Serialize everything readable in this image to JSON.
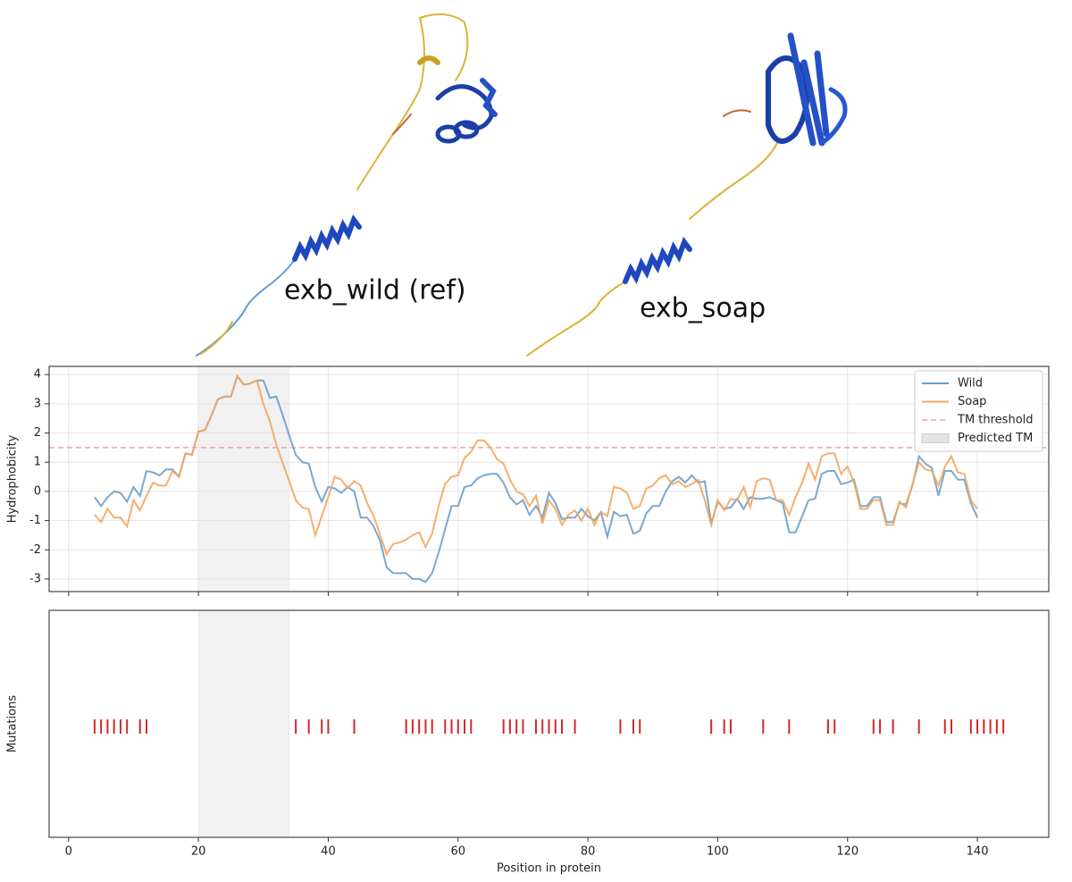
{
  "images": [
    {
      "label": "exb_wild (ref)"
    },
    {
      "label": "exb_soap"
    }
  ],
  "chart_data": [
    {
      "type": "line",
      "ylabel": "Hydrophobicity",
      "x": [
        4,
        5,
        6,
        7,
        8,
        9,
        10,
        11,
        12,
        13,
        14,
        15,
        16,
        17,
        18,
        19,
        20,
        21,
        22,
        23,
        24,
        25,
        26,
        27,
        28,
        29,
        30,
        31,
        32,
        33,
        34,
        35,
        36,
        37,
        38,
        39,
        40,
        41,
        42,
        43,
        44,
        45,
        46,
        47,
        48,
        49,
        50,
        51,
        52,
        53,
        54,
        55,
        56,
        57,
        58,
        59,
        60,
        61,
        62,
        63,
        64,
        65,
        66,
        67,
        68,
        69,
        70,
        71,
        72,
        73,
        74,
        75,
        76,
        77,
        78,
        79,
        80,
        81,
        82,
        83,
        84,
        85,
        86,
        87,
        88,
        89,
        90,
        91,
        92,
        93,
        94,
        95,
        96,
        97,
        98,
        99,
        100,
        101,
        102,
        103,
        104,
        105,
        106,
        107,
        108,
        109,
        110,
        111,
        112,
        113,
        114,
        115,
        116,
        117,
        118,
        119,
        120,
        121,
        122,
        123,
        124,
        125,
        126,
        127,
        128,
        129,
        130,
        131,
        132,
        133,
        134,
        135,
        136,
        137,
        138,
        139,
        140
      ],
      "series": [
        {
          "name": "Wild",
          "color": "#6a9fcb",
          "values": [
            -0.2,
            -0.5,
            -0.2,
            0.0,
            -0.05,
            -0.35,
            0.15,
            -0.15,
            0.7,
            0.65,
            0.55,
            0.75,
            0.75,
            0.5,
            1.3,
            1.25,
            2.05,
            2.1,
            2.6,
            3.15,
            3.25,
            3.25,
            3.95,
            3.65,
            3.7,
            3.8,
            3.8,
            3.2,
            3.25,
            2.6,
            1.9,
            1.25,
            1.0,
            0.95,
            0.15,
            -0.35,
            0.15,
            0.1,
            -0.05,
            0.15,
            0.0,
            -0.9,
            -0.9,
            -1.2,
            -1.7,
            -2.6,
            -2.8,
            -2.8,
            -2.8,
            -3.0,
            -3.0,
            -3.1,
            -2.8,
            -2.1,
            -1.3,
            -0.5,
            -0.5,
            0.15,
            0.2,
            0.45,
            0.55,
            0.6,
            0.6,
            0.3,
            -0.2,
            -0.45,
            -0.3,
            -0.8,
            -0.5,
            -0.9,
            -0.05,
            -0.4,
            -0.95,
            -0.9,
            -0.9,
            -0.6,
            -0.85,
            -1.0,
            -0.7,
            -1.55,
            -0.7,
            -0.85,
            -0.8,
            -1.45,
            -1.35,
            -0.75,
            -0.5,
            -0.5,
            0.0,
            0.35,
            0.5,
            0.3,
            0.55,
            0.3,
            0.35,
            -1.1,
            -0.35,
            -0.6,
            -0.55,
            -0.25,
            -0.6,
            -0.2,
            -0.25,
            -0.25,
            -0.2,
            -0.3,
            -0.4,
            -1.4,
            -1.4,
            -0.85,
            -0.3,
            -0.25,
            0.6,
            0.7,
            0.7,
            0.25,
            0.3,
            0.4,
            -0.5,
            -0.5,
            -0.2,
            -0.2,
            -1.05,
            -1.05,
            -0.4,
            -0.45,
            0.2,
            1.2,
            0.95,
            0.8,
            -0.15,
            0.7,
            0.7,
            0.4,
            0.4,
            -0.4,
            -0.9
          ]
        },
        {
          "name": "Soap",
          "color": "#f5a55c",
          "values": [
            -0.8,
            -1.05,
            -0.6,
            -0.9,
            -0.9,
            -1.2,
            -0.3,
            -0.65,
            -0.15,
            0.3,
            0.2,
            0.2,
            0.7,
            0.5,
            1.3,
            1.25,
            2.05,
            2.1,
            2.6,
            3.15,
            3.25,
            3.25,
            3.95,
            3.65,
            3.7,
            3.8,
            3.0,
            2.4,
            1.6,
            0.95,
            0.35,
            -0.3,
            -0.55,
            -0.6,
            -1.5,
            -0.85,
            -0.2,
            0.5,
            0.4,
            0.1,
            0.35,
            0.2,
            -0.4,
            -0.85,
            -1.5,
            -2.15,
            -1.8,
            -1.75,
            -1.65,
            -1.5,
            -1.4,
            -1.9,
            -1.45,
            -0.5,
            0.25,
            0.5,
            0.55,
            1.15,
            1.35,
            1.75,
            1.75,
            1.5,
            1.1,
            0.95,
            0.4,
            0.0,
            -0.1,
            -0.5,
            -0.15,
            -1.1,
            -0.3,
            -0.6,
            -1.15,
            -0.8,
            -0.65,
            -1.0,
            -0.6,
            -1.15,
            -0.7,
            -0.85,
            0.15,
            0.1,
            -0.05,
            -0.6,
            -0.5,
            0.1,
            0.2,
            0.45,
            0.55,
            0.25,
            0.35,
            0.15,
            0.25,
            0.4,
            -0.3,
            -1.15,
            -0.3,
            -0.65,
            -0.25,
            -0.3,
            0.15,
            -0.55,
            0.35,
            0.45,
            0.4,
            -0.3,
            -0.3,
            -0.8,
            -0.2,
            0.3,
            0.95,
            0.4,
            1.2,
            1.3,
            1.3,
            0.6,
            0.85,
            0.3,
            -0.6,
            -0.6,
            -0.3,
            -0.3,
            -1.15,
            -1.15,
            -0.35,
            -0.55,
            0.25,
            1.0,
            0.75,
            0.7,
            0.2,
            0.85,
            1.2,
            0.65,
            0.6,
            -0.3,
            -0.6
          ]
        }
      ],
      "hline": {
        "name": "TM threshold",
        "value": 1.5,
        "color": "#f4a0a0"
      },
      "span": {
        "name": "Predicted TM",
        "x0": 20,
        "x1": 34,
        "color": "#e4e4e4"
      },
      "xlim": [
        -3,
        151
      ],
      "xticks": [
        0,
        20,
        40,
        60,
        80,
        100,
        120,
        140
      ],
      "show_xtick_labels": false,
      "ylim": [
        -3.43,
        4.28
      ],
      "yticks": [
        -3,
        -2,
        -1,
        0,
        1,
        2,
        3,
        4
      ],
      "grid": true,
      "legend": "upper right"
    },
    {
      "type": "eventplot",
      "xlabel": "Position in protein",
      "ylabel": "Mutations",
      "color": "#d62728",
      "positions": [
        4,
        5,
        6,
        7,
        8,
        9,
        11,
        12,
        35,
        37,
        39,
        40,
        44,
        52,
        53,
        54,
        55,
        56,
        58,
        59,
        60,
        61,
        62,
        67,
        68,
        69,
        70,
        72,
        73,
        74,
        75,
        76,
        78,
        85,
        87,
        88,
        99,
        101,
        102,
        107,
        111,
        117,
        118,
        124,
        125,
        127,
        131,
        135,
        136,
        139,
        140,
        141,
        142,
        143,
        144
      ],
      "span": {
        "x0": 20,
        "x1": 34,
        "color": "#e4e4e4"
      },
      "xlim": [
        -3,
        151
      ],
      "xticks": [
        0,
        20,
        40,
        60,
        80,
        100,
        120,
        140
      ],
      "show_xtick_labels": true,
      "grid": false
    }
  ]
}
